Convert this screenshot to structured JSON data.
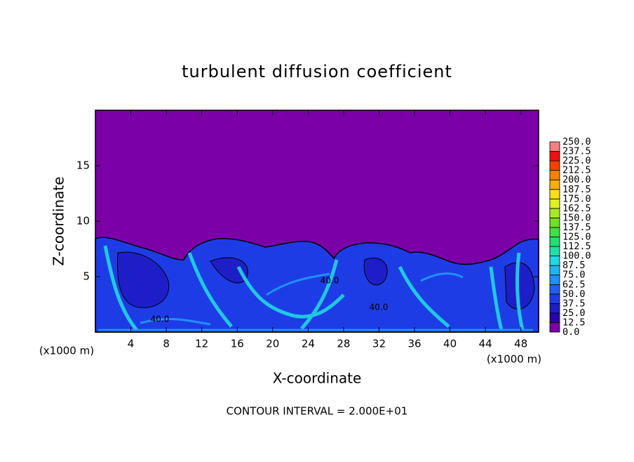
{
  "chart_data": {
    "type": "contour",
    "title": "turbulent diffusion coefficient",
    "x_label": "X-coordinate",
    "y_label": "Z-coordinate",
    "x_unit": "(x1000 m)",
    "y_unit": "(x1000 m)",
    "footer": "CONTOUR INTERVAL = 2.000E+01",
    "contour_labels": [
      "40.0",
      "40.0",
      "40.0"
    ],
    "xlim": [
      0,
      50
    ],
    "ylim": [
      0,
      20
    ],
    "xticks": [
      4,
      8,
      12,
      16,
      20,
      24,
      28,
      32,
      36,
      40,
      44,
      48
    ],
    "yticks": [
      5,
      10,
      15
    ],
    "levels": [
      {
        "value": 0,
        "label": "0.0"
      },
      {
        "value": 12.5,
        "label": "12.5"
      },
      {
        "value": 25,
        "label": "25.0"
      },
      {
        "value": 37.5,
        "label": "37.5"
      },
      {
        "value": 50,
        "label": "50.0"
      },
      {
        "value": 62.5,
        "label": "62.5"
      },
      {
        "value": 75,
        "label": "75.0"
      },
      {
        "value": 87.5,
        "label": "87.5"
      },
      {
        "value": 100,
        "label": "100.0"
      },
      {
        "value": 112.5,
        "label": "112.5"
      },
      {
        "value": 125,
        "label": "125.0"
      },
      {
        "value": 137.5,
        "label": "137.5"
      },
      {
        "value": 150,
        "label": "150.0"
      },
      {
        "value": 162.5,
        "label": "162.5"
      },
      {
        "value": 175,
        "label": "175.0"
      },
      {
        "value": 187.5,
        "label": "187.5"
      },
      {
        "value": 200,
        "label": "200.0"
      },
      {
        "value": 212.5,
        "label": "212.5"
      },
      {
        "value": 225,
        "label": "225.0"
      },
      {
        "value": 237.5,
        "label": "237.5"
      },
      {
        "value": 250,
        "label": "250.0"
      }
    ],
    "colors": [
      "#7b00a8",
      "#2a00b0",
      "#1e1ec8",
      "#1e3ce6",
      "#2060f0",
      "#1e90ff",
      "#20b4f0",
      "#20d8e0",
      "#20e0a8",
      "#20e070",
      "#40e040",
      "#70e020",
      "#a8e820",
      "#e0f020",
      "#f8e018",
      "#f8b000",
      "#f88000",
      "#f84000",
      "#f01010",
      "#f88080"
    ]
  }
}
